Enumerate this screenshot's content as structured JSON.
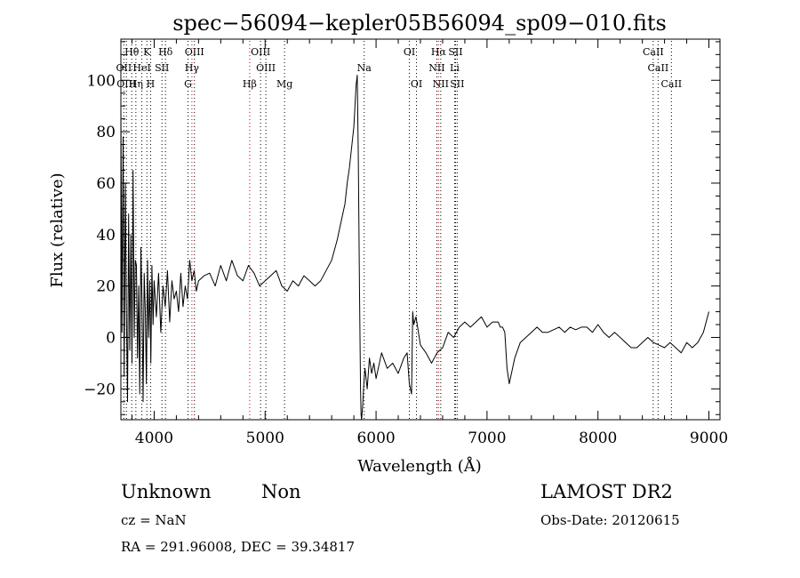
{
  "chart_data": {
    "type": "line",
    "title": "spec−56094−kepler05B56094_sp09−010.fits",
    "xlabel": "Wavelength (Å)",
    "ylabel": "Flux (relative)",
    "xlim": [
      3700,
      9100
    ],
    "ylim": [
      -32,
      116
    ],
    "grid": false,
    "x_ticks": [
      4000,
      5000,
      6000,
      7000,
      8000,
      9000
    ],
    "x_tick_labels": [
      "4000",
      "5000",
      "6000",
      "7000",
      "8000",
      "9000"
    ],
    "y_ticks": [
      -20,
      0,
      20,
      40,
      60,
      80,
      100
    ],
    "y_tick_labels": [
      "−20",
      "0",
      "20",
      "40",
      "60",
      "80",
      "100"
    ],
    "series": [
      {
        "color": "#000000",
        "x": [
          3700,
          3710,
          3720,
          3730,
          3740,
          3750,
          3760,
          3770,
          3780,
          3790,
          3800,
          3810,
          3820,
          3830,
          3840,
          3850,
          3860,
          3870,
          3880,
          3890,
          3900,
          3910,
          3920,
          3930,
          3940,
          3950,
          3960,
          3970,
          3980,
          3990,
          4000,
          4020,
          4040,
          4060,
          4080,
          4100,
          4120,
          4140,
          4160,
          4180,
          4200,
          4220,
          4240,
          4260,
          4280,
          4300,
          4320,
          4340,
          4360,
          4380,
          4400,
          4450,
          4500,
          4550,
          4600,
          4650,
          4700,
          4750,
          4800,
          4850,
          4900,
          4950,
          5000,
          5050,
          5100,
          5150,
          5200,
          5250,
          5300,
          5350,
          5400,
          5450,
          5500,
          5550,
          5600,
          5650,
          5700,
          5720,
          5740,
          5760,
          5780,
          5800,
          5820,
          5830,
          5840,
          5850,
          5860,
          5865,
          5870,
          5880,
          5890,
          5900,
          5920,
          5940,
          5960,
          5980,
          6000,
          6050,
          6100,
          6150,
          6200,
          6250,
          6280,
          6300,
          6320,
          6330,
          6340,
          6360,
          6400,
          6450,
          6500,
          6550,
          6600,
          6650,
          6700,
          6750,
          6800,
          6850,
          6900,
          6950,
          7000,
          7050,
          7100,
          7120,
          7140,
          7160,
          7180,
          7200,
          7250,
          7300,
          7350,
          7400,
          7450,
          7500,
          7550,
          7600,
          7650,
          7700,
          7750,
          7800,
          7850,
          7900,
          7950,
          8000,
          8050,
          8100,
          8150,
          8200,
          8250,
          8300,
          8350,
          8400,
          8450,
          8500,
          8550,
          8600,
          8650,
          8700,
          8750,
          8800,
          8850,
          8900,
          8950,
          9000
        ],
        "y": [
          90,
          2,
          78,
          -15,
          60,
          10,
          -25,
          48,
          -5,
          40,
          -10,
          65,
          0,
          30,
          28,
          -8,
          20,
          -22,
          35,
          15,
          -25,
          25,
          10,
          -18,
          30,
          0,
          22,
          -10,
          28,
          5,
          22,
          8,
          25,
          2,
          20,
          12,
          26,
          6,
          22,
          15,
          18,
          10,
          25,
          12,
          20,
          15,
          30,
          22,
          26,
          18,
          22,
          24,
          25,
          20,
          28,
          22,
          30,
          24,
          22,
          28,
          25,
          20,
          22,
          24,
          26,
          20,
          18,
          22,
          20,
          24,
          22,
          20,
          22,
          26,
          30,
          38,
          48,
          52,
          60,
          66,
          74,
          82,
          98,
          102,
          70,
          20,
          -20,
          -30,
          -32,
          -26,
          -18,
          -12,
          -20,
          -8,
          -14,
          -10,
          -16,
          -6,
          -12,
          -10,
          -14,
          -8,
          -6,
          -18,
          -22,
          10,
          5,
          8,
          -3,
          -6,
          -10,
          -6,
          -4,
          2,
          0,
          4,
          6,
          4,
          6,
          8,
          4,
          6,
          6,
          4,
          4,
          2,
          -12,
          -18,
          -8,
          -2,
          0,
          2,
          4,
          2,
          2,
          3,
          4,
          2,
          4,
          3,
          4,
          4,
          2,
          5,
          2,
          0,
          2,
          0,
          -2,
          -4,
          -4,
          -2,
          0,
          -2,
          -3,
          -4,
          -2,
          -4,
          -6,
          -2,
          -4,
          -2,
          2,
          10
        ]
      }
    ],
    "spectral_lines": [
      {
        "label": "Hθ",
        "x": 3798,
        "row": 1,
        "color": "#000000"
      },
      {
        "label": "K",
        "x": 3934,
        "row": 1,
        "color": "#000000"
      },
      {
        "label": "Hδ",
        "x": 4102,
        "row": 1,
        "color": "#000000"
      },
      {
        "label": "OIII",
        "x": 4363,
        "row": 1,
        "color": "#000000"
      },
      {
        "label": "OIII",
        "x": 4959,
        "row": 1,
        "color": "#000000"
      },
      {
        "label": "OI",
        "x": 6300,
        "row": 1,
        "color": "#000000"
      },
      {
        "label": "Hα",
        "x": 6563,
        "row": 1,
        "color": "#cc0000"
      },
      {
        "label": "SII",
        "x": 6716,
        "row": 1,
        "color": "#000000"
      },
      {
        "label": "CaII",
        "x": 8498,
        "row": 1,
        "color": "#000000"
      },
      {
        "label": "OII",
        "x": 3727,
        "row": 2,
        "color": "#000000"
      },
      {
        "label": "HeI",
        "x": 3889,
        "row": 2,
        "color": "#000000"
      },
      {
        "label": "SII",
        "x": 4070,
        "row": 2,
        "color": "#000000"
      },
      {
        "label": "Hγ",
        "x": 4340,
        "row": 2,
        "color": "#cc0000"
      },
      {
        "label": "OIII",
        "x": 5007,
        "row": 2,
        "color": "#000000"
      },
      {
        "label": "Na",
        "x": 5893,
        "row": 2,
        "color": "#000000"
      },
      {
        "label": "NII",
        "x": 6548,
        "row": 2,
        "color": "#000000"
      },
      {
        "label": "Li",
        "x": 6708,
        "row": 2,
        "color": "#000000"
      },
      {
        "label": "CaII",
        "x": 8542,
        "row": 2,
        "color": "#000000"
      },
      {
        "label": "OIII",
        "x": 3750,
        "row": 3,
        "color": "#000000"
      },
      {
        "label": "Hη",
        "x": 3835,
        "row": 3,
        "color": "#000000"
      },
      {
        "label": "H",
        "x": 3968,
        "row": 3,
        "color": "#000000"
      },
      {
        "label": "G",
        "x": 4305,
        "row": 3,
        "color": "#000000"
      },
      {
        "label": "Hβ",
        "x": 4861,
        "row": 3,
        "color": "#cc0000"
      },
      {
        "label": "Mg",
        "x": 5175,
        "row": 3,
        "color": "#000000"
      },
      {
        "label": "OI",
        "x": 6364,
        "row": 3,
        "color": "#000000"
      },
      {
        "label": "NII",
        "x": 6583,
        "row": 3,
        "color": "#000000"
      },
      {
        "label": "SII",
        "x": 6731,
        "row": 3,
        "color": "#000000"
      },
      {
        "label": "CaII",
        "x": 8662,
        "row": 3,
        "color": "#000000"
      }
    ]
  },
  "info": {
    "class_label": "Unknown",
    "subclass_label": "Non",
    "cz_text": "cz = NaN",
    "coords_text": "RA = 291.96008, DEC =  39.34817",
    "survey_label": "LAMOST DR2",
    "obs_date_text": "Obs-Date: 20120615"
  }
}
